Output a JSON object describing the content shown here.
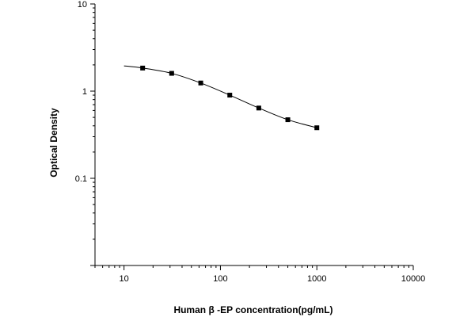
{
  "chart_data": {
    "type": "scatter",
    "title": "",
    "xlabel": "Human β -EP concentration(pg/mL)",
    "ylabel": "Optical Density",
    "x_scale": "log",
    "y_scale": "log",
    "xlim": [
      5,
      10000
    ],
    "ylim": [
      0.01,
      10
    ],
    "x_ticks": [
      10,
      100,
      1000,
      10000
    ],
    "x_tick_labels": [
      "10",
      "100",
      "1000",
      "10000"
    ],
    "y_ticks": [
      0.1,
      1,
      10
    ],
    "y_tick_labels": [
      "0.1",
      "1",
      "10"
    ],
    "grid": false,
    "legend": "none",
    "series": [
      {
        "x": [
          15.6,
          31.2,
          62.5,
          125,
          250,
          500,
          1000
        ],
        "y": [
          1.84,
          1.6,
          1.24,
          0.9,
          0.64,
          0.47,
          0.38
        ],
        "marker": "square",
        "fit_line": true
      }
    ],
    "fit_curve": {
      "x": [
        10,
        15.6,
        31.2,
        62.5,
        125,
        250,
        500,
        1000
      ],
      "y": [
        1.95,
        1.84,
        1.6,
        1.24,
        0.9,
        0.64,
        0.47,
        0.38
      ]
    },
    "colors": {
      "line": "#000000",
      "marker": "#000000",
      "axis": "#000000"
    }
  }
}
